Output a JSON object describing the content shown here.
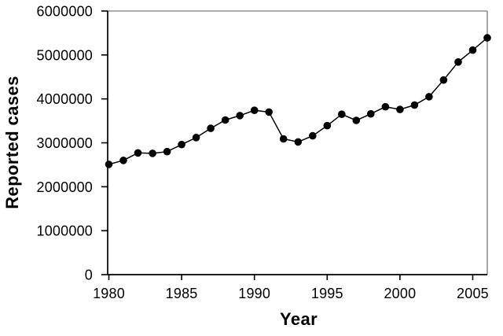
{
  "figure": {
    "background": "#ffffff"
  },
  "chart_data": {
    "type": "line",
    "title": "",
    "xlabel": "Year",
    "ylabel": "Reported cases",
    "x": [
      1980,
      1981,
      1982,
      1983,
      1984,
      1985,
      1986,
      1987,
      1988,
      1989,
      1990,
      1991,
      1992,
      1993,
      1994,
      1995,
      1996,
      1997,
      1998,
      1999,
      2000,
      2001,
      2002,
      2003,
      2004,
      2005,
      2006
    ],
    "values": [
      2510000,
      2600000,
      2770000,
      2760000,
      2800000,
      2960000,
      3120000,
      3330000,
      3520000,
      3620000,
      3740000,
      3700000,
      3090000,
      3020000,
      3160000,
      3390000,
      3650000,
      3510000,
      3660000,
      3820000,
      3760000,
      3860000,
      4050000,
      4430000,
      4840000,
      5110000,
      5390000
    ],
    "xlim": [
      1980,
      2006
    ],
    "ylim": [
      0,
      6000000
    ],
    "x_ticks": [
      1980,
      1985,
      1990,
      1995,
      2000,
      2005
    ],
    "y_ticks": [
      0,
      1000000,
      2000000,
      3000000,
      4000000,
      5000000,
      6000000
    ],
    "grid": false,
    "legend": "none",
    "marker": "filled-circle",
    "colors": {
      "line": "#000000",
      "marker": "#000000",
      "axis": "#000000",
      "plot_border": "#8f8f8f",
      "text": "#000000",
      "background": "#ffffff"
    }
  }
}
